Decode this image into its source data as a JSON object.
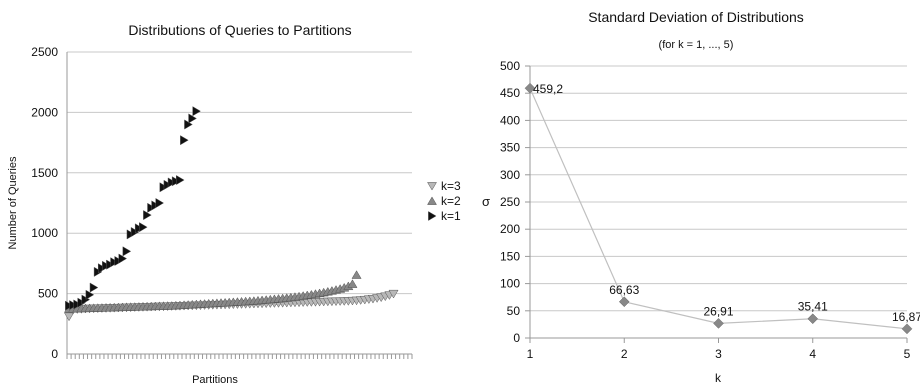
{
  "chart_data": [
    {
      "type": "scatter",
      "title": "Distributions of Queries to Partitions",
      "xlabel": "Partitions",
      "ylabel": "Number of Queries",
      "ylim": [
        0,
        2500
      ],
      "yticks": [
        "0",
        "500",
        "1000",
        "1500",
        "2000",
        "2500"
      ],
      "grid": true,
      "legend_placement": "right",
      "series": [
        {
          "name": "k=3",
          "marker": "triangle-down",
          "color": "#b8b8b8",
          "x": [
            1,
            2,
            3,
            4,
            5,
            6,
            7,
            8,
            9,
            10,
            11,
            12,
            13,
            14,
            15,
            16,
            17,
            18,
            19,
            20,
            21,
            22,
            23,
            24,
            25,
            26,
            27,
            28,
            29,
            30,
            31,
            32,
            33,
            34,
            35,
            36,
            37,
            38,
            39,
            40,
            41,
            42,
            43,
            44,
            45,
            46,
            47,
            48,
            49,
            50,
            51,
            52,
            53,
            54,
            55,
            56,
            57,
            58,
            59,
            60,
            61,
            62,
            63,
            64,
            65,
            66,
            67,
            68,
            69,
            70,
            71,
            72,
            73,
            74,
            75,
            76,
            77,
            78,
            79,
            80
          ],
          "values": [
            310,
            365,
            370,
            372,
            374,
            375,
            376,
            377,
            378,
            379,
            380,
            381,
            382,
            383,
            384,
            385,
            386,
            387,
            388,
            389,
            390,
            391,
            392,
            393,
            394,
            395,
            396,
            397,
            398,
            399,
            400,
            401,
            402,
            403,
            404,
            405,
            406,
            407,
            408,
            409,
            410,
            411,
            412,
            413,
            414,
            415,
            416,
            417,
            418,
            419,
            420,
            421,
            422,
            423,
            424,
            425,
            426,
            427,
            428,
            429,
            430,
            431,
            432,
            433,
            434,
            435,
            436,
            437,
            438,
            440,
            442,
            445,
            448,
            452,
            456,
            462,
            468,
            476,
            486,
            498
          ]
        },
        {
          "name": "k=2",
          "marker": "triangle-up",
          "color": "#888888",
          "x": [
            1,
            2,
            3,
            4,
            5,
            6,
            7,
            8,
            9,
            10,
            11,
            12,
            13,
            14,
            15,
            16,
            17,
            18,
            19,
            20,
            21,
            22,
            23,
            24,
            25,
            26,
            27,
            28,
            29,
            30,
            31,
            32,
            33,
            34,
            35,
            36,
            37,
            38,
            39,
            40,
            41,
            42,
            43,
            44,
            45,
            46,
            47,
            48,
            49,
            50,
            51,
            52,
            53,
            54,
            55,
            56,
            57,
            58,
            59,
            60,
            61,
            62,
            63,
            64,
            65,
            66,
            67,
            68,
            69,
            70,
            71
          ],
          "values": [
            375,
            376,
            377,
            378,
            379,
            380,
            381,
            382,
            383,
            384,
            385,
            386,
            387,
            388,
            389,
            390,
            391,
            392,
            393,
            394,
            395,
            396,
            397,
            398,
            399,
            400,
            402,
            404,
            406,
            408,
            410,
            412,
            414,
            416,
            418,
            420,
            422,
            424,
            426,
            428,
            430,
            432,
            434,
            436,
            438,
            440,
            443,
            446,
            449,
            452,
            455,
            458,
            461,
            465,
            469,
            473,
            477,
            482,
            487,
            492,
            498,
            504,
            510,
            517,
            524,
            532,
            540,
            550,
            562,
            580,
            655
          ]
        },
        {
          "name": "k=1",
          "marker": "triangle-right",
          "color": "#111111",
          "x": [
            1,
            2,
            3,
            4,
            5,
            6,
            7,
            8,
            9,
            10,
            11,
            12,
            13,
            14,
            15,
            16,
            17,
            18,
            19,
            20,
            21,
            22,
            23,
            24,
            25,
            26,
            27,
            28,
            29,
            30,
            31,
            32
          ],
          "values": [
            400,
            405,
            410,
            425,
            450,
            490,
            550,
            680,
            710,
            730,
            740,
            760,
            770,
            790,
            850,
            990,
            1010,
            1040,
            1050,
            1150,
            1210,
            1230,
            1250,
            1380,
            1400,
            1420,
            1430,
            1440,
            1770,
            1900,
            1950,
            2010
          ]
        }
      ]
    },
    {
      "type": "line",
      "title": "Standard Deviation of Distributions",
      "subtitle": "(for k = 1, ..., 5)",
      "xlabel": "k",
      "ylabel": "σ",
      "categories": [
        "1",
        "2",
        "3",
        "4",
        "5"
      ],
      "ylim": [
        0,
        500
      ],
      "yticks": [
        "0",
        "50",
        "100",
        "150",
        "200",
        "250",
        "300",
        "350",
        "400",
        "450",
        "500"
      ],
      "grid": true,
      "series": [
        {
          "marker": "diamond",
          "color": "#888888",
          "line_color": "#c0c0c0",
          "values": [
            459.2,
            66.63,
            26.91,
            35.41,
            16.87
          ],
          "labels": [
            "459,2",
            "66,63",
            "26,91",
            "35,41",
            "16,87"
          ]
        }
      ]
    }
  ]
}
